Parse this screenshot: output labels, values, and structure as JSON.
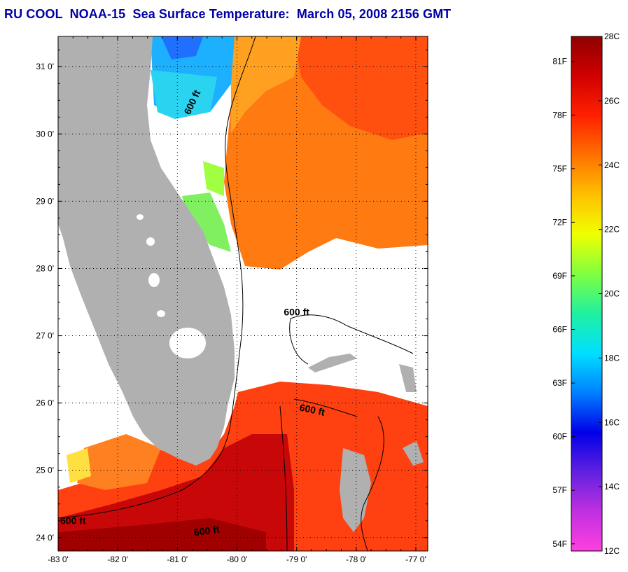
{
  "title": "RU COOL  NOAA-15  Sea Surface Temperature:  March 05, 2008 2156 GMT",
  "map": {
    "lon_range": [
      -83,
      -76.8
    ],
    "lat_range": [
      23.8,
      31.45
    ],
    "x_ticks": [
      {
        "value": -83,
        "label": "-83 0'"
      },
      {
        "value": -82,
        "label": "-82 0'"
      },
      {
        "value": -81,
        "label": "-81 0'"
      },
      {
        "value": -80,
        "label": "-80 0'"
      },
      {
        "value": -79,
        "label": "-79 0'"
      },
      {
        "value": -78,
        "label": "-78 0'"
      },
      {
        "value": -77,
        "label": "-77 0'"
      }
    ],
    "y_ticks": [
      {
        "value": 24,
        "label": "24 0'"
      },
      {
        "value": 25,
        "label": "25 0'"
      },
      {
        "value": 26,
        "label": "26 0'"
      },
      {
        "value": 27,
        "label": "27 0'"
      },
      {
        "value": 28,
        "label": "28 0'"
      },
      {
        "value": 29,
        "label": "29 0'"
      },
      {
        "value": 30,
        "label": "30 0'"
      },
      {
        "value": 31,
        "label": "31 0'"
      }
    ],
    "contour_labels": [
      {
        "text": "600 ft",
        "lon": -80.7,
        "lat": 30.45,
        "rotate": -65
      },
      {
        "text": "600 ft",
        "lon": -79.0,
        "lat": 27.3,
        "rotate": 0
      },
      {
        "text": "600 ft",
        "lon": -78.75,
        "lat": 25.85,
        "rotate": 12
      },
      {
        "text": "600 ft",
        "lon": -82.75,
        "lat": 24.2,
        "rotate": 0
      },
      {
        "text": "600 ft",
        "lon": -80.5,
        "lat": 24.05,
        "rotate": -8
      }
    ],
    "colors": {
      "land": "#b0b0b0",
      "cloud": "#ffffff",
      "frame": "#000000"
    }
  },
  "colorbar": {
    "c_min": 12,
    "c_max": 28,
    "f_labels": [
      "54F",
      "57F",
      "60F",
      "63F",
      "66F",
      "69F",
      "72F",
      "75F",
      "78F",
      "81F"
    ],
    "c_labels": [
      "12C",
      "14C",
      "16C",
      "18C",
      "20C",
      "22C",
      "24C",
      "26C",
      "28C"
    ],
    "stops": [
      "#ff40e0",
      "#c030e0",
      "#6020e0",
      "#0000e8",
      "#0080ff",
      "#00e0ff",
      "#20f0a0",
      "#80ff40",
      "#f0ff00",
      "#ffc000",
      "#ff7000",
      "#ff2000",
      "#d00000",
      "#900000"
    ]
  }
}
